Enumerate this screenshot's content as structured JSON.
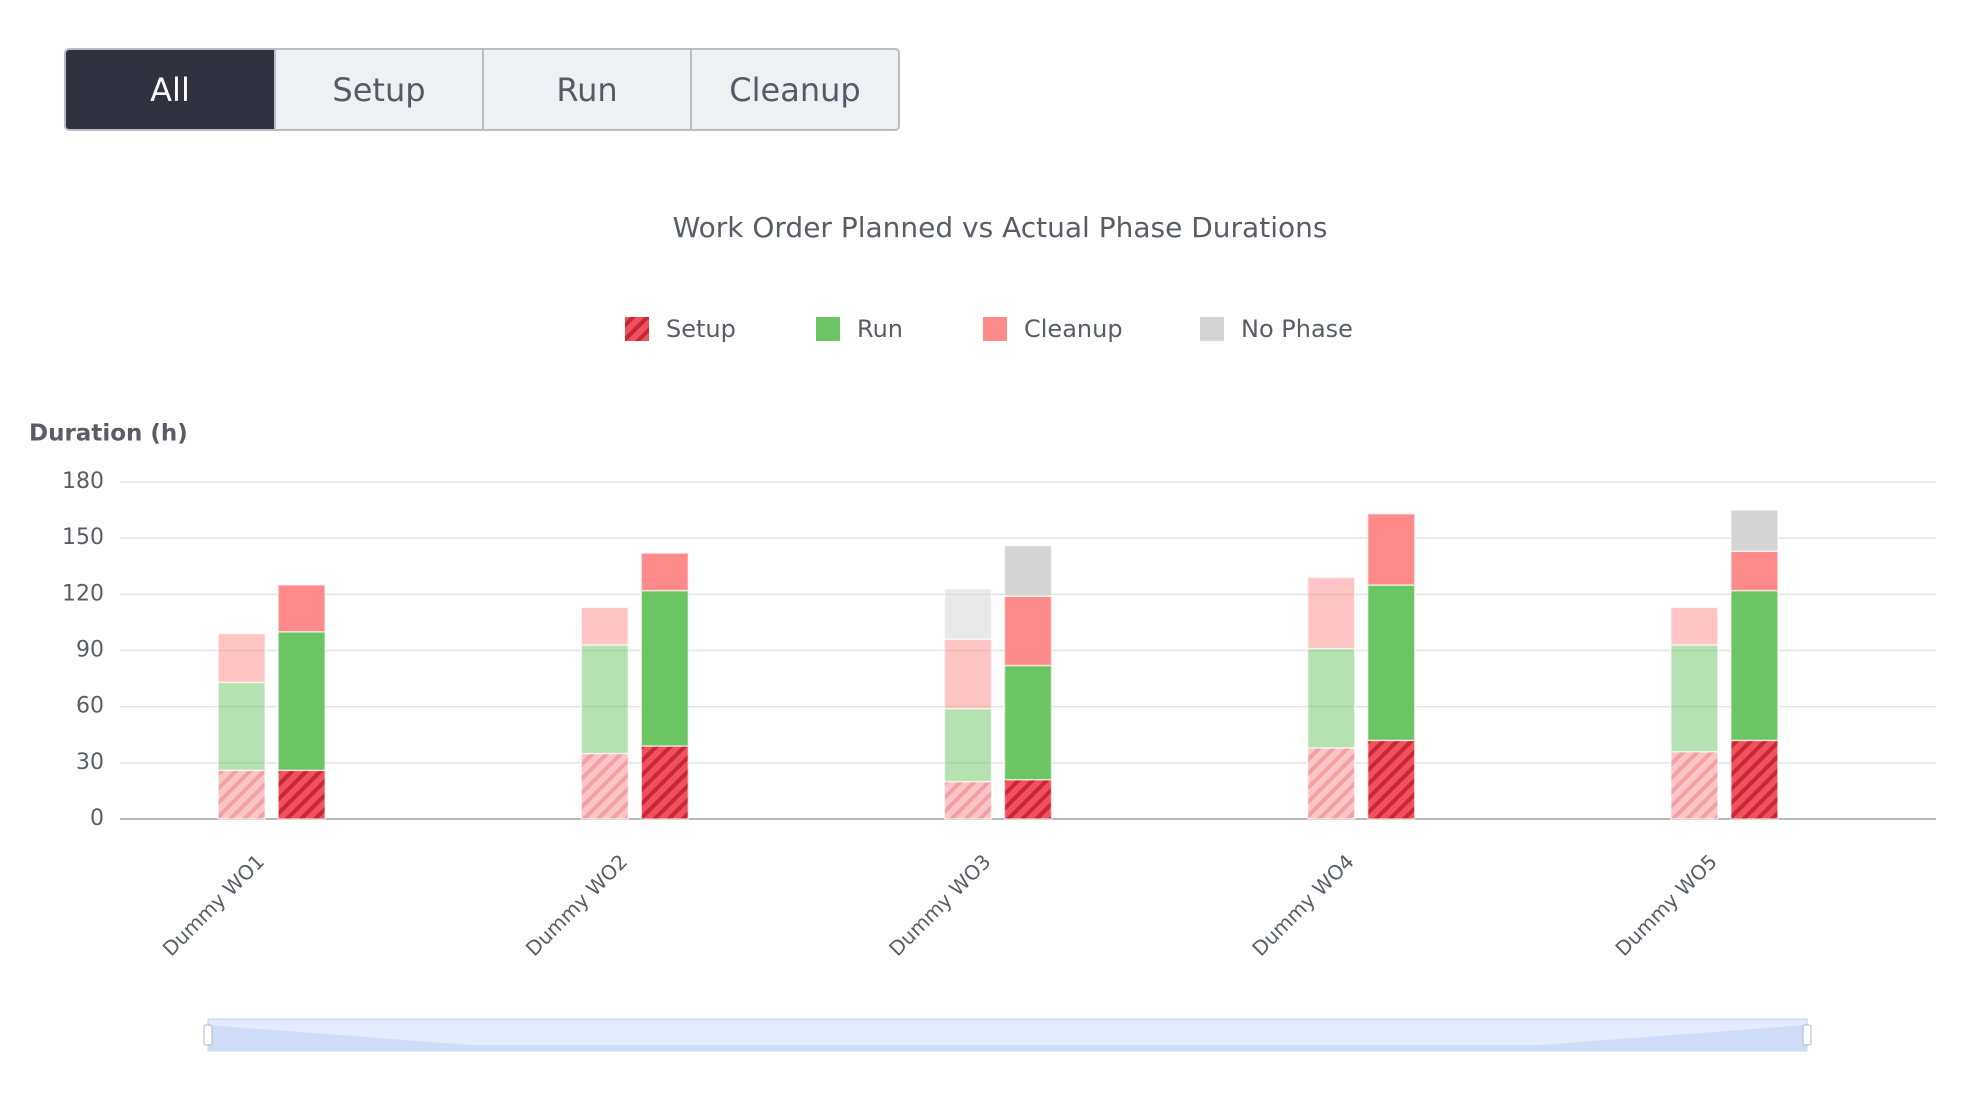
{
  "filters": [
    "All",
    "Setup",
    "Run",
    "Cleanup"
  ],
  "chart_data": {
    "type": "bar",
    "title": "Work Order Planned vs Actual Phase Durations",
    "y_label": "Duration (h)",
    "categories": [
      "Dummy WO1",
      "Dummy WO2",
      "Dummy WO3",
      "Dummy WO4",
      "Dummy WO5"
    ],
    "series": [
      {
        "name": "Setup",
        "color": "#f0525a",
        "hatched": true,
        "planned": [
          26,
          35,
          20,
          38,
          36
        ],
        "actual": [
          26,
          39,
          21,
          42,
          42
        ]
      },
      {
        "name": "Run",
        "color": "#6cc564",
        "planned": [
          47,
          58,
          39,
          53,
          57
        ],
        "actual": [
          74,
          83,
          61,
          83,
          80
        ]
      },
      {
        "name": "Cleanup",
        "color": "#ff8a8a",
        "planned": [
          26,
          20,
          37,
          38,
          20
        ],
        "actual": [
          25,
          20,
          37,
          38,
          21
        ]
      },
      {
        "name": "No Phase",
        "color": "#d4d4d4",
        "planned": [
          0,
          0,
          27,
          0,
          0
        ],
        "actual": [
          0,
          0,
          27,
          0,
          22
        ]
      }
    ],
    "ylim": [
      0,
      180
    ],
    "yticks": [
      0,
      30,
      60,
      90,
      120,
      150,
      180
    ],
    "grid": true
  }
}
